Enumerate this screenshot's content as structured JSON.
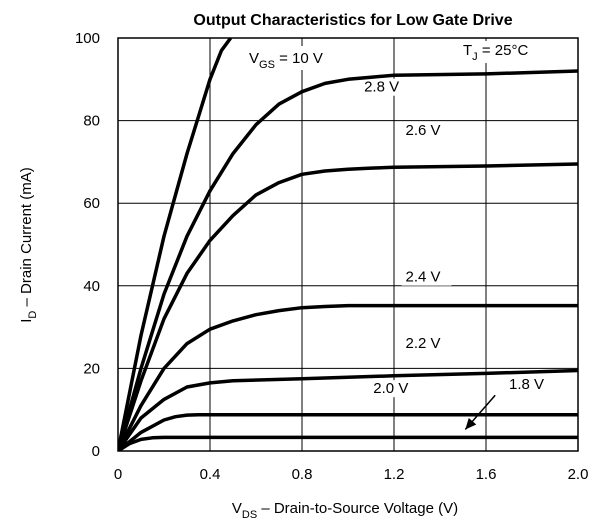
{
  "chart_data": {
    "type": "line",
    "title": "Output Characteristics for Low Gate Drive",
    "xlabel": {
      "main": "V",
      "sub": "DS",
      "rest": " – Drain-to-Source Voltage (V)"
    },
    "ylabel": {
      "main": "I",
      "sub": "D",
      "rest": " – Drain Current (mA)"
    },
    "xlim": [
      0,
      2.0
    ],
    "ylim": [
      0,
      100
    ],
    "x_ticks": [
      "0",
      "0.4",
      "0.8",
      "1.2",
      "1.6",
      "2.0"
    ],
    "y_ticks": [
      "0",
      "20",
      "40",
      "60",
      "80",
      "100"
    ],
    "grid": true,
    "annotation_vgs": {
      "main": "V",
      "sub": "GS",
      "rest": " = 10 V"
    },
    "annotation_tj": {
      "main": "T",
      "sub": "J",
      "rest": " = 25°C"
    },
    "series": [
      {
        "name": "10 V",
        "x": [
          0,
          0.05,
          0.1,
          0.15,
          0.2,
          0.25,
          0.3,
          0.35,
          0.4,
          0.45,
          0.49
        ],
        "y": [
          0,
          14,
          28,
          40,
          52,
          62,
          72,
          81,
          90,
          97,
          100
        ]
      },
      {
        "name": "2.8 V",
        "x": [
          0,
          0.1,
          0.2,
          0.3,
          0.4,
          0.5,
          0.6,
          0.7,
          0.8,
          0.9,
          1.0,
          1.1,
          1.2,
          1.6,
          2.0
        ],
        "y": [
          0,
          20,
          38,
          52,
          63,
          72,
          79,
          84,
          87,
          89,
          90,
          90.5,
          91,
          91.3,
          92
        ]
      },
      {
        "name": "2.6 V",
        "x": [
          0,
          0.1,
          0.2,
          0.3,
          0.4,
          0.5,
          0.6,
          0.7,
          0.8,
          0.9,
          1.0,
          1.1,
          1.2,
          1.6,
          2.0
        ],
        "y": [
          0,
          17,
          32,
          43,
          51,
          57,
          62,
          65,
          67,
          67.8,
          68.2,
          68.5,
          68.7,
          69,
          69.5
        ]
      },
      {
        "name": "2.4 V",
        "x": [
          0,
          0.1,
          0.2,
          0.3,
          0.4,
          0.5,
          0.6,
          0.7,
          0.8,
          0.9,
          1.0,
          1.2,
          1.6,
          2.0
        ],
        "y": [
          0,
          11,
          20,
          26,
          29.5,
          31.5,
          33,
          34,
          34.7,
          35,
          35.2,
          35.2,
          35.2,
          35.2
        ]
      },
      {
        "name": "2.2 V",
        "x": [
          0,
          0.1,
          0.2,
          0.3,
          0.4,
          0.5,
          0.8,
          1.2,
          1.6,
          2.0
        ],
        "y": [
          0,
          8,
          12.5,
          15.5,
          16.5,
          17,
          17.5,
          18.2,
          18.8,
          19.5
        ]
      },
      {
        "name": "2.0 V",
        "x": [
          0,
          0.1,
          0.2,
          0.25,
          0.3,
          0.35,
          0.4,
          0.8,
          1.2,
          1.6,
          2.0
        ],
        "y": [
          0,
          4.5,
          7.5,
          8.3,
          8.7,
          8.8,
          8.8,
          8.8,
          8.8,
          8.8,
          8.8
        ]
      },
      {
        "name": "1.8 V",
        "x": [
          0,
          0.05,
          0.1,
          0.15,
          0.2,
          0.3,
          0.8,
          1.2,
          1.6,
          2.0
        ],
        "y": [
          0,
          1.8,
          2.8,
          3.2,
          3.3,
          3.3,
          3.3,
          3.3,
          3.3,
          3.3
        ]
      }
    ],
    "curve_labels": [
      {
        "text": "2.8 V",
        "x": 1.07,
        "y": 87
      },
      {
        "text": "2.6 V",
        "x": 1.25,
        "y": 76.5
      },
      {
        "text": "2.4 V",
        "x": 1.25,
        "y": 41
      },
      {
        "text": "2.2 V",
        "x": 1.25,
        "y": 25
      },
      {
        "text": "2.0 V",
        "x": 1.11,
        "y": 14
      },
      {
        "text": "1.8 V",
        "x": 1.7,
        "y": 15
      }
    ],
    "arrow": {
      "x1": 1.64,
      "y1": 13.5,
      "x2": 1.51,
      "y2": 5.2
    }
  }
}
